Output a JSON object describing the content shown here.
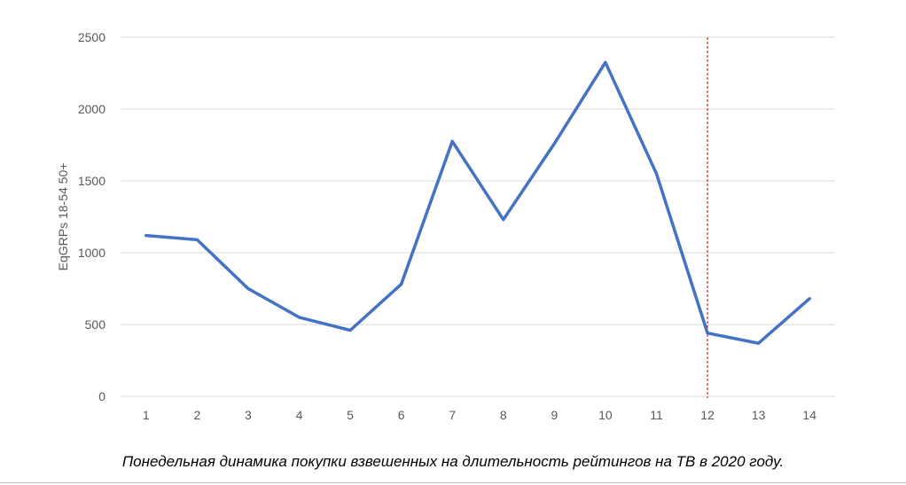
{
  "chart_data": {
    "type": "line",
    "title": "",
    "xlabel": "",
    "ylabel": "EqGRPs 18-54 50+",
    "categories": [
      "1",
      "2",
      "3",
      "4",
      "5",
      "6",
      "7",
      "8",
      "9",
      "10",
      "11",
      "12",
      "13",
      "14"
    ],
    "series": [
      {
        "values": [
          1120,
          1090,
          750,
          550,
          460,
          780,
          1775,
          1230,
          1760,
          2325,
          1550,
          440,
          370,
          680
        ]
      }
    ],
    "ylim": [
      0,
      2500
    ],
    "yticks": [
      "0",
      "500",
      "1000",
      "1500",
      "2000",
      "2500"
    ],
    "grid": true,
    "legend": "none",
    "marker_line": {
      "position_after_category": 11.5
    },
    "colors": {
      "line": "#4472c4",
      "grid": "#d9d9d9",
      "marker": "#c00000"
    }
  },
  "caption": "Понедельная динамика покупки взвешенных на длительность рейтингов на ТВ в 2020 году."
}
